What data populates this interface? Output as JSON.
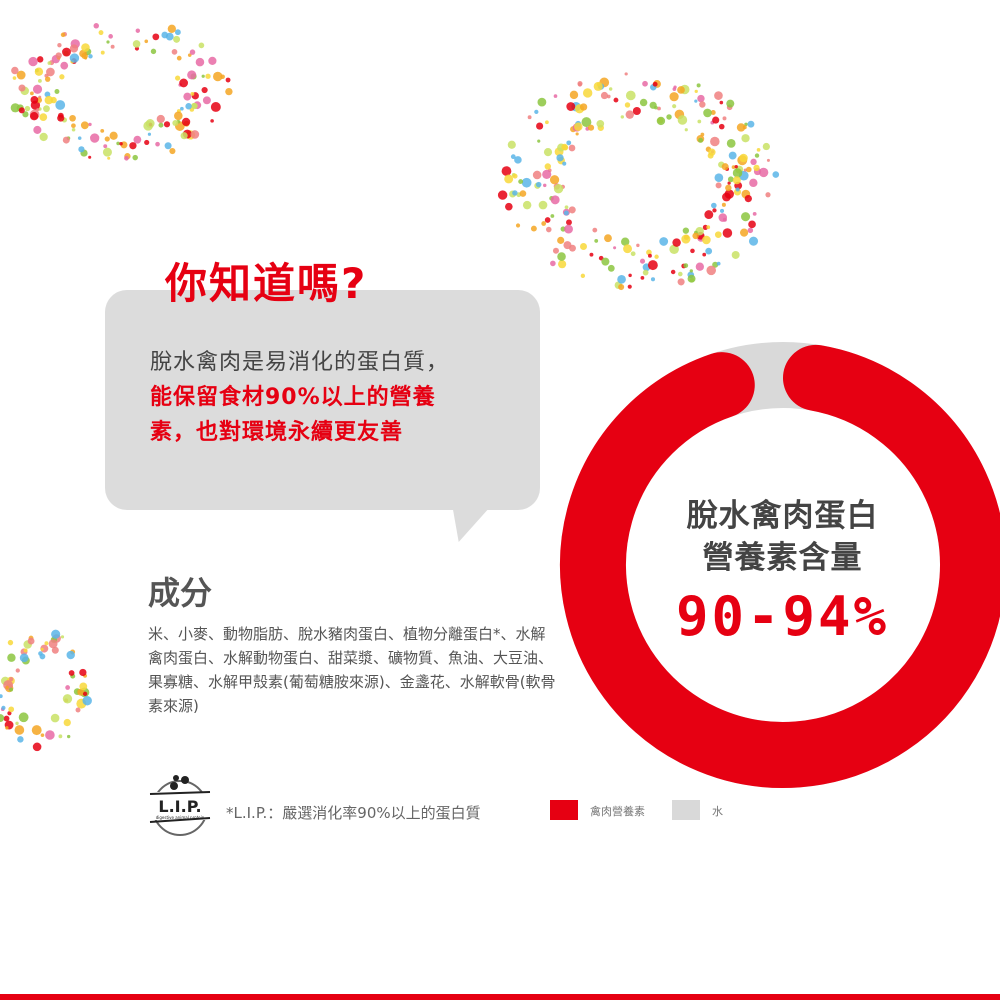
{
  "headline": "你知道嗎?",
  "bubble": {
    "line1": "脫水禽肉是易消化的蛋白質，",
    "line2": "能保留食材90%以上的營養",
    "line3": "素，也對環境永續更友善"
  },
  "ingredients": {
    "title": "成分",
    "text": "米、小麥、動物脂肪、脫水豬肉蛋白、植物分離蛋白*、水解禽肉蛋白、水解動物蛋白、甜菜漿、礦物質、魚油、大豆油、果寡糖、水解甲殼素(葡萄糖胺來源)、金盞花、水解軟骨(軟骨素來源)"
  },
  "lip": {
    "logo_text": "L.I.P.",
    "logo_subtext": "digestive animal protein",
    "note": "*L.I.P.：嚴選消化率90%以上的蛋白質"
  },
  "chart_data": {
    "type": "pie",
    "donut": true,
    "center_label": "脫水禽肉蛋白營養素含量",
    "center_label_lines": [
      "脫水禽肉蛋白",
      "營養素含量"
    ],
    "value_label": "90-94%",
    "series": [
      {
        "name": "禽肉營養素",
        "value": 92,
        "color": "#e60012"
      },
      {
        "name": "水",
        "value": 8,
        "color": "#d9d9d9"
      }
    ],
    "legend": "bottom-left"
  },
  "colors": {
    "accent": "#e60012",
    "bubble": "#dcdcdc",
    "text": "#444444"
  }
}
